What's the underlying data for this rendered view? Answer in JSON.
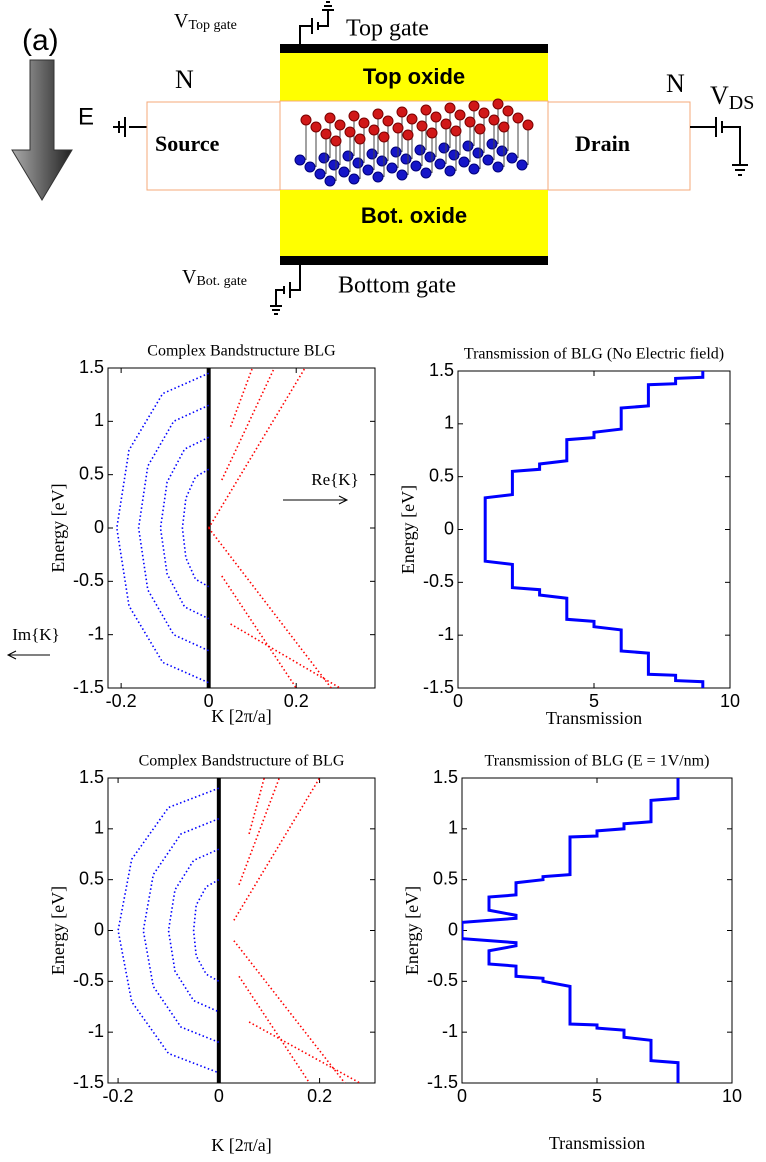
{
  "diagram": {
    "panel_label": "(a)",
    "field_label": "E",
    "left_doping": "N",
    "right_doping": "N",
    "top_gate_voltage": {
      "symbol": "V",
      "subscript": "Top gate"
    },
    "top_gate": "Top gate",
    "top_oxide": "Top oxide",
    "source": "Source",
    "drain": "Drain",
    "drain_voltage": {
      "symbol": "V",
      "subscript": "DS"
    },
    "bottom_oxide": "Bot. oxide",
    "bottom_gate_voltage": {
      "symbol": "V",
      "subscript": "Bot. gate"
    },
    "bottom_gate": "Bottom gate"
  },
  "chart_data": [
    {
      "type": "line",
      "line_style": "dotted",
      "zero_line": true,
      "title": "Complex Bandstructure BLG",
      "x_label": "K [2π/a]",
      "y_label": "Energy [eV]",
      "xlim": [
        -0.23,
        0.38
      ],
      "ylim": [
        -1.5,
        1.5
      ],
      "xticks": [
        -0.2,
        0,
        0.2
      ],
      "yticks": [
        -1.5,
        -1,
        -0.5,
        0,
        0.5,
        1,
        1.5
      ],
      "annotations": [
        "Re{K}",
        "Im{K}"
      ],
      "series": [
        {
          "color": "#0000ff",
          "x": [
            0,
            -0.03,
            -0.052,
            -0.06,
            -0.052,
            -0.03,
            0
          ],
          "values": [
            0.55,
            0.48,
            0.28,
            0,
            -0.28,
            -0.48,
            -0.55
          ]
        },
        {
          "color": "#0000ff",
          "x": [
            0,
            -0.055,
            -0.095,
            -0.11,
            -0.095,
            -0.055,
            0
          ],
          "values": [
            0.85,
            0.74,
            0.43,
            0,
            -0.43,
            -0.74,
            -0.85
          ]
        },
        {
          "color": "#0000ff",
          "x": [
            0,
            -0.08,
            -0.139,
            -0.16,
            -0.139,
            -0.08,
            0
          ],
          "values": [
            1.15,
            1.0,
            0.58,
            0,
            -0.58,
            -1.0,
            -1.15
          ]
        },
        {
          "color": "#0000ff",
          "x": [
            0,
            -0.105,
            -0.182,
            -0.21,
            -0.182,
            -0.105,
            0
          ],
          "values": [
            1.45,
            1.26,
            0.73,
            0,
            -0.73,
            -1.26,
            -1.45
          ]
        },
        {
          "color": "#ff0000",
          "x": [
            0,
            0.22
          ],
          "values": [
            0,
            1.5
          ]
        },
        {
          "color": "#ff0000",
          "x": [
            0,
            0.28
          ],
          "values": [
            0,
            -1.5
          ]
        },
        {
          "color": "#ff0000",
          "x": [
            0.03,
            0.15
          ],
          "values": [
            0.45,
            1.5
          ]
        },
        {
          "color": "#ff0000",
          "x": [
            0.03,
            0.2
          ],
          "values": [
            -0.45,
            -1.5
          ]
        },
        {
          "color": "#ff0000",
          "x": [
            0.05,
            0.3
          ],
          "values": [
            -0.9,
            -1.5
          ]
        },
        {
          "color": "#ff0000",
          "x": [
            0.05,
            0.1
          ],
          "values": [
            0.95,
            1.5
          ]
        }
      ]
    },
    {
      "type": "line",
      "line_style": "solid",
      "title": "Transmission of BLG (No Electric field)",
      "x_label": "Transmission",
      "y_label": "Energy [eV]",
      "xlim": [
        0,
        10
      ],
      "ylim": [
        -1.5,
        1.5
      ],
      "xticks": [
        0,
        5,
        10
      ],
      "yticks": [
        -1.5,
        -1,
        -0.5,
        0,
        0.5,
        1,
        1.5
      ],
      "series": [
        {
          "color": "#0000ff",
          "x": [
            9,
            9,
            8,
            8,
            7,
            7,
            6,
            6,
            5,
            5,
            4,
            4,
            3,
            3,
            2,
            2,
            1,
            1,
            2,
            2,
            3,
            3,
            4,
            4,
            5,
            5,
            6,
            6,
            7,
            7,
            8,
            8,
            9,
            9
          ],
          "values": [
            -1.5,
            -1.44,
            -1.43,
            -1.38,
            -1.37,
            -1.17,
            -1.15,
            -0.95,
            -0.92,
            -0.87,
            -0.85,
            -0.65,
            -0.62,
            -0.57,
            -0.55,
            -0.33,
            -0.3,
            0.3,
            0.33,
            0.55,
            0.57,
            0.62,
            0.65,
            0.85,
            0.87,
            0.92,
            0.95,
            1.15,
            1.17,
            1.37,
            1.38,
            1.43,
            1.44,
            1.5
          ]
        }
      ]
    },
    {
      "type": "line",
      "line_style": "dotted",
      "zero_line": true,
      "title": "Complex Bandstructure of BLG",
      "x_label": "K [2π/a]",
      "y_label": "Energy [eV]",
      "xlim": [
        -0.22,
        0.31
      ],
      "ylim": [
        -1.5,
        1.5
      ],
      "xticks": [
        -0.2,
        0,
        0.2
      ],
      "yticks": [
        -1.5,
        -1,
        -0.5,
        0,
        0.5,
        1,
        1.5
      ],
      "series": [
        {
          "color": "#0000ff",
          "x": [
            0,
            -0.025,
            -0.045,
            -0.05,
            -0.045,
            -0.025,
            0
          ],
          "values": [
            0.5,
            0.43,
            0.25,
            0,
            -0.25,
            -0.43,
            -0.5
          ]
        },
        {
          "color": "#0000ff",
          "x": [
            0,
            -0.05,
            -0.087,
            -0.1,
            -0.087,
            -0.05,
            0
          ],
          "values": [
            0.8,
            0.69,
            0.4,
            0,
            -0.4,
            -0.69,
            -0.8
          ]
        },
        {
          "color": "#0000ff",
          "x": [
            0,
            -0.075,
            -0.13,
            -0.15,
            -0.13,
            -0.075,
            0
          ],
          "values": [
            1.1,
            0.95,
            0.55,
            0,
            -0.55,
            -0.95,
            -1.1
          ]
        },
        {
          "color": "#0000ff",
          "x": [
            0,
            -0.1,
            -0.173,
            -0.2,
            -0.173,
            -0.1,
            0
          ],
          "values": [
            1.4,
            1.21,
            0.7,
            0,
            -0.7,
            -1.21,
            -1.4
          ]
        },
        {
          "color": "#ff0000",
          "x": [
            0.03,
            0.2
          ],
          "values": [
            0.1,
            1.5
          ]
        },
        {
          "color": "#ff0000",
          "x": [
            0.03,
            0.25
          ],
          "values": [
            -0.1,
            -1.5
          ]
        },
        {
          "color": "#ff0000",
          "x": [
            0.04,
            0.12
          ],
          "values": [
            0.45,
            1.5
          ]
        },
        {
          "color": "#ff0000",
          "x": [
            0.04,
            0.18
          ],
          "values": [
            -0.45,
            -1.5
          ]
        },
        {
          "color": "#ff0000",
          "x": [
            0.06,
            0.28
          ],
          "values": [
            -0.9,
            -1.5
          ]
        },
        {
          "color": "#ff0000",
          "x": [
            0.06,
            0.09
          ],
          "values": [
            0.95,
            1.5
          ]
        }
      ]
    },
    {
      "type": "line",
      "line_style": "solid",
      "title": "Transmission of BLG (E = 1V/nm)",
      "x_label": "Transmission",
      "y_label": "Energy [eV]",
      "xlim": [
        0,
        10
      ],
      "ylim": [
        -1.5,
        1.5
      ],
      "xticks": [
        0,
        5,
        10
      ],
      "yticks": [
        -1.5,
        -1,
        -0.5,
        0,
        0.5,
        1,
        1.5
      ],
      "series": [
        {
          "color": "#0000ff",
          "x": [
            8,
            8,
            7,
            7,
            6,
            6,
            5,
            5,
            4,
            4,
            3,
            3,
            2,
            2,
            1,
            1,
            2,
            2,
            0,
            0,
            2,
            2,
            1,
            1,
            2,
            2,
            3,
            3,
            4,
            4,
            5,
            5,
            6,
            6,
            7,
            7,
            8,
            8
          ],
          "values": [
            -1.5,
            -1.3,
            -1.28,
            -1.08,
            -1.05,
            -0.98,
            -0.96,
            -0.93,
            -0.92,
            -0.55,
            -0.5,
            -0.47,
            -0.45,
            -0.35,
            -0.33,
            -0.2,
            -0.15,
            -0.12,
            -0.08,
            0.08,
            0.12,
            0.15,
            0.2,
            0.33,
            0.35,
            0.47,
            0.5,
            0.53,
            0.55,
            0.92,
            0.93,
            0.98,
            1.0,
            1.05,
            1.07,
            1.28,
            1.3,
            1.5
          ]
        }
      ]
    }
  ]
}
